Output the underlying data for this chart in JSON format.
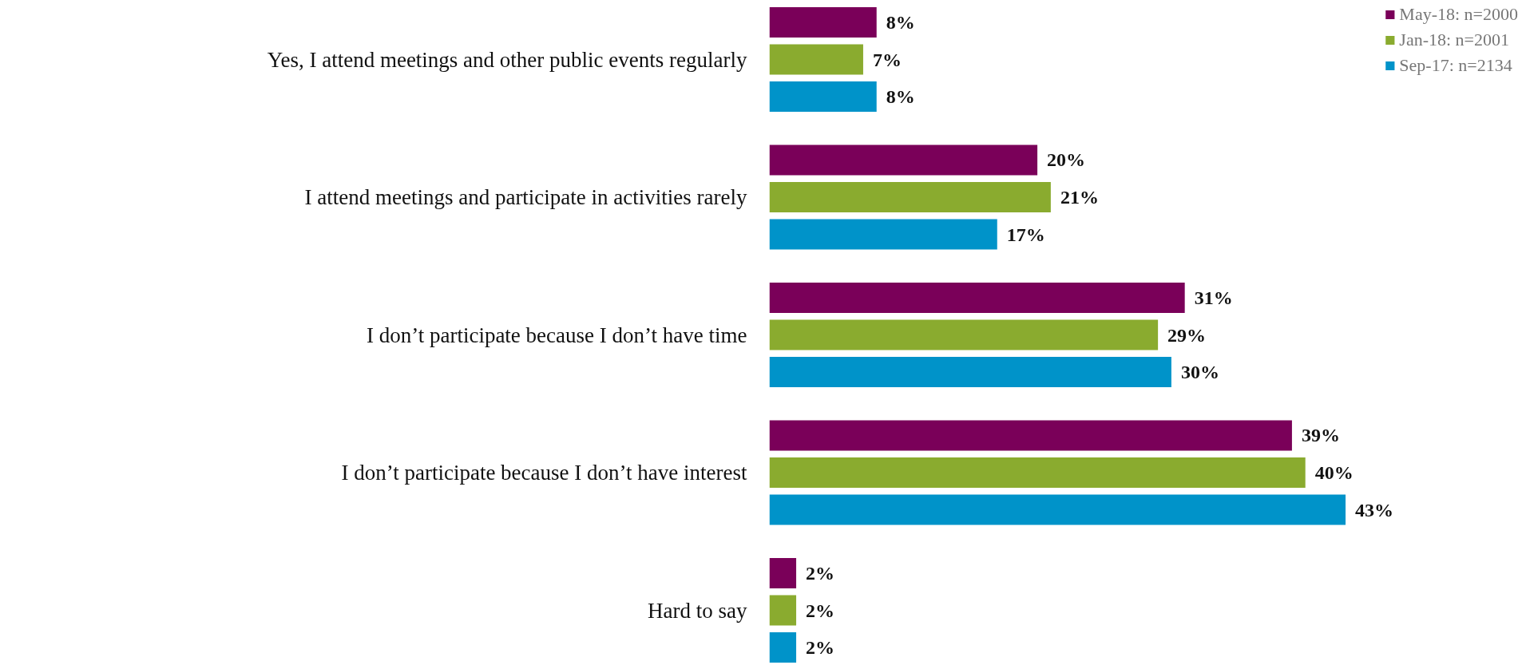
{
  "chart_data": {
    "type": "bar",
    "orientation": "horizontal",
    "categories": [
      "Yes, I attend meetings and other public events regularly",
      "I attend meetings and participate in activities rarely",
      "I don’t participate because I don’t have time",
      "I don’t participate because I don’t have interest",
      "Hard to say"
    ],
    "series": [
      {
        "name": "May-18: n=2000",
        "color": "#7a0059",
        "values": [
          8,
          20,
          31,
          39,
          2
        ],
        "value_labels": [
          "8%",
          "20%",
          "31%",
          "39%",
          "2%"
        ]
      },
      {
        "name": "Jan-18: n=2001",
        "color": "#8aab2f",
        "values": [
          7,
          21,
          29,
          40,
          2
        ],
        "value_labels": [
          "7%",
          "21%",
          "29%",
          "40%",
          "2%"
        ]
      },
      {
        "name": "Sep-17: n=2134",
        "color": "#0093c9",
        "values": [
          8,
          17,
          30,
          43,
          2
        ],
        "value_labels": [
          "8%",
          "17%",
          "30%",
          "43%",
          "2%"
        ]
      }
    ],
    "legend": "top right",
    "grid": false
  }
}
